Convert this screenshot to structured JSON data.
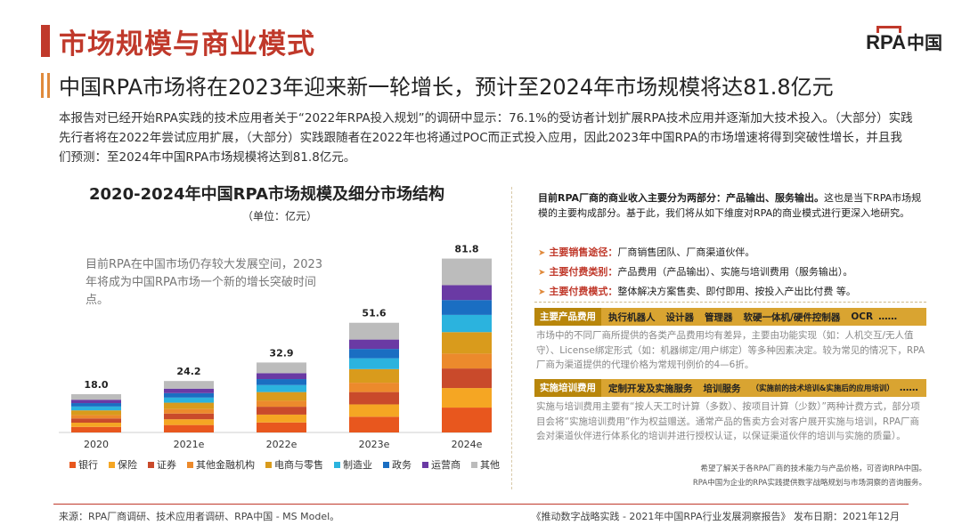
{
  "header": {
    "title": "市场规模与商业模式",
    "logo_text": "RPA",
    "logo_cn": "中国"
  },
  "subtitle": "中国RPA市场将在2023年迎来新一轮增长，预计至2024年市场规模将达81.8亿元",
  "intro": "本报告对已经开始RPA实践的技术应用者关于“2022年RPA投入规划”的调研中显示：76.1%的受访者计划扩展RPA技术应用并逐渐加大技术投入。（大部分）实践先行者将在2022年尝试应用扩展，（大部分）实践跟随者在2022年也将通过POC而正式投入应用，因此2023年中国RPA的市场增速将得到突破性增长，并且我们预测：至2024年中国RPA市场规模将达到81.8亿元。",
  "chart": {
    "unit": "（单位：亿元）",
    "note": "目前RPA在中国市场仍存较大发展空间，2023年将成为中国RPA市场一个新的增长突破时间点。"
  },
  "chart_data": {
    "type": "bar",
    "stacked": true,
    "title": "2020-2024年中国RPA市场规模及细分市场结构",
    "ylabel": "亿元",
    "categories": [
      "2020",
      "2021e",
      "2022e",
      "2023e",
      "2024e"
    ],
    "totals": [
      18.0,
      24.2,
      32.9,
      51.6,
      81.8
    ],
    "total_labels": [
      "18.0",
      "24.2",
      "32.9",
      "51.6",
      "81.8"
    ],
    "series": [
      {
        "name": "银行",
        "color": "#e8571e",
        "values": [
          2.6,
          3.5,
          4.7,
          7.4,
          11.7
        ]
      },
      {
        "name": "保险",
        "color": "#f5a623",
        "values": [
          2.0,
          2.7,
          3.7,
          5.8,
          9.2
        ]
      },
      {
        "name": "证券",
        "color": "#c94a2b",
        "values": [
          2.0,
          2.7,
          3.7,
          5.8,
          9.2
        ]
      },
      {
        "name": "其他金融机构",
        "color": "#ec8a2c",
        "values": [
          1.6,
          2.1,
          2.8,
          4.4,
          7.0
        ]
      },
      {
        "name": "电商与零售",
        "color": "#d99b1c",
        "values": [
          2.2,
          3.0,
          4.1,
          6.4,
          10.1
        ]
      },
      {
        "name": "制造业",
        "color": "#2bb3de",
        "values": [
          1.8,
          2.4,
          3.3,
          5.1,
          8.1
        ]
      },
      {
        "name": "政务",
        "color": "#1a6ec2",
        "values": [
          1.6,
          2.1,
          2.8,
          4.4,
          7.0
        ]
      },
      {
        "name": "运营商",
        "color": "#6a3aa4",
        "values": [
          1.6,
          2.1,
          2.8,
          4.4,
          7.0
        ]
      },
      {
        "name": "其他",
        "color": "#bcbcbc",
        "values": [
          2.6,
          3.6,
          5.0,
          7.9,
          12.5
        ]
      }
    ],
    "ylim": [
      0,
      90
    ],
    "legend_position": "bottom"
  },
  "right_panel": {
    "intro_bold": "目前RPA厂商的商业收入主要分为两部分：产品输出、服务输出。",
    "intro_rest": "这也是当下RPA市场规模的主要构成部分。基于此，我们将从如下维度对RPA的商业模式进行更深入地研究。",
    "items": [
      {
        "key": "主要销售途径：",
        "value": "厂商销售团队、厂商渠道伙伴。"
      },
      {
        "key": "主要付费类别：",
        "value": "产品费用（产品输出）、实施与培训费用（服务输出）。"
      },
      {
        "key": "主要付费模式：",
        "value": "整体解决方案售卖、即付即用、按投入产出比付费 等。"
      }
    ],
    "product_band": {
      "label": "主要产品费用",
      "items": [
        "执行机器人",
        "设计器",
        "管理器",
        "软硬一体机/硬件控制器",
        "OCR"
      ],
      "more": "……"
    },
    "product_text": "市场中的不同厂商所提供的各类产品费用均有差异，主要由功能实现（如：人机交互/无人值守）、License绑定形式（如：机器绑定/用户绑定）等多种因素决定。较为常见的情况下，RPA厂商为渠道提供的代理价格为常规刊例价的4—6折。",
    "service_band": {
      "label": "实施培训费用",
      "items": [
        "定制开发及实施服务",
        "培训服务",
        "（实施前的技术培训&实施后的应用培训）"
      ],
      "more": "……"
    },
    "service_text": "实施与培训费用主要有“按人天工时计算（多数）、按项目计算（少数）”两种计费方式，部分项目会将“实施培训费用”作为权益赠送。通常产品的售卖方会对客户展开实施与培训，RPA厂商会对渠道伙伴进行体系化的培训并进行授权认证，以保证渠道伙伴的培训与实施的质量）。",
    "contact_1": "希望了解关于各RPA厂商的技术能力与产品价格，可咨询RPA中国。",
    "contact_2": "RPA中国为企业的RPA实践提供数字战略规划与市场洞察的咨询服务。"
  },
  "footer": {
    "source": "来源：RPA厂商调研、技术应用者调研、RPA中国 - MS Model。",
    "report": "《推动数字战略实践 - 2021年中国RPA行业发展洞察报告》  发布日期：2021年12月"
  }
}
